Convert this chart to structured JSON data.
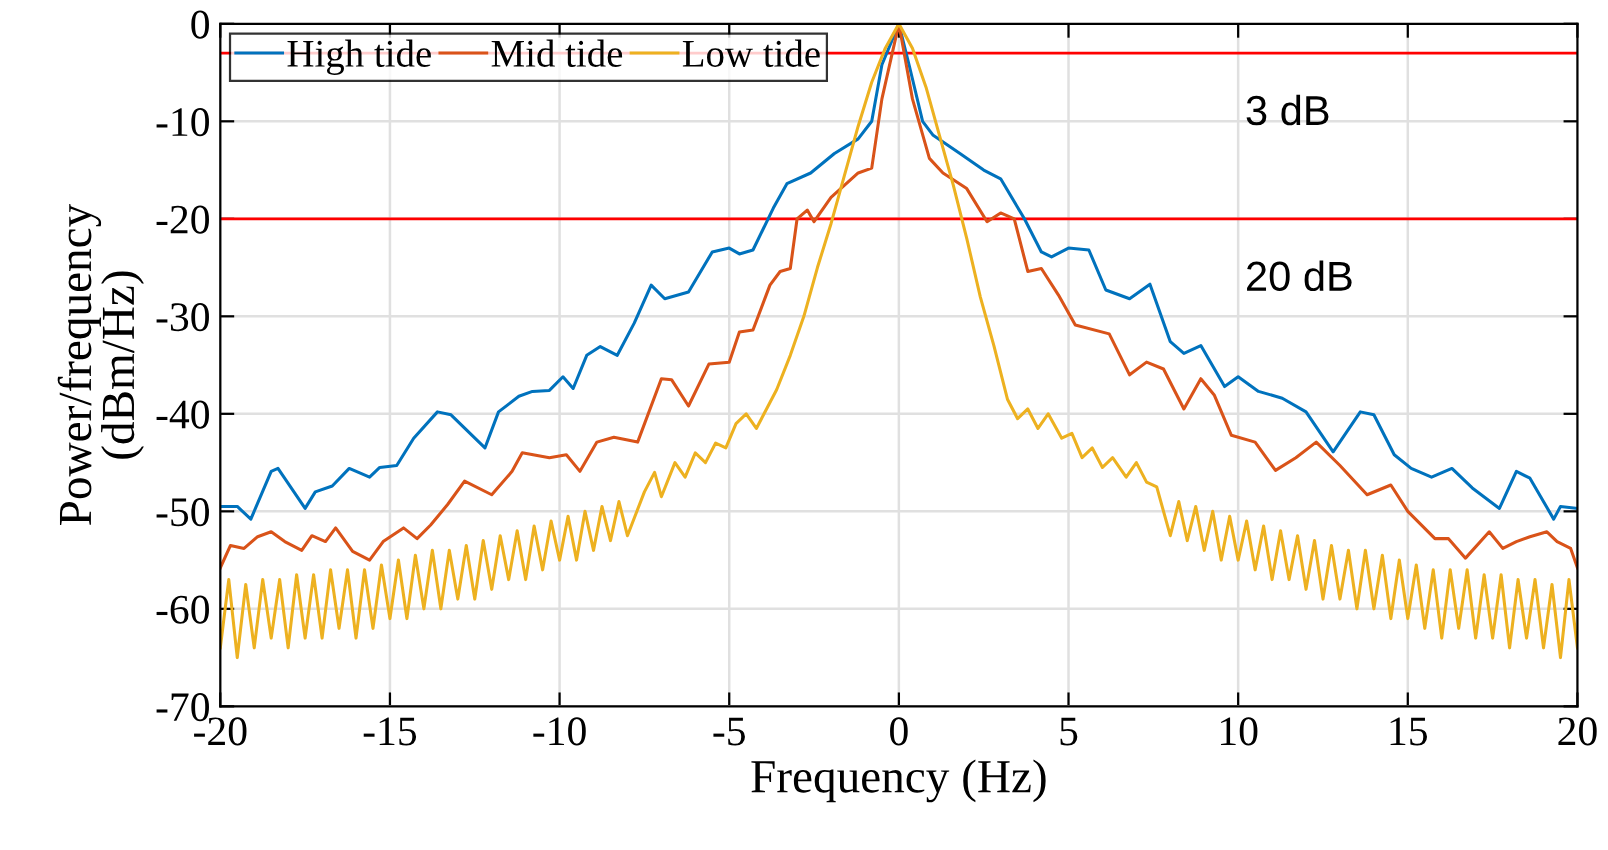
{
  "chart_data": {
    "type": "line",
    "xlabel": "Frequency (Hz)",
    "ylabel": "Power/frequency\n(dBm/Hz)",
    "xlim": [
      -20,
      20
    ],
    "ylim": [
      -70,
      0
    ],
    "xticks": [
      -20,
      -15,
      -10,
      -5,
      0,
      5,
      10,
      15,
      20
    ],
    "yticks": [
      -70,
      -60,
      -50,
      -40,
      -30,
      -20,
      -10,
      0
    ],
    "grid": true,
    "legend": "top left",
    "line_style": "solid",
    "marker": "none",
    "series": [
      {
        "name": "High tide",
        "color": "#0072bd",
        "x": [
          -20,
          -19.5,
          -19.1,
          -18.5,
          -18.3,
          -17.5,
          -17.2,
          -16.7,
          -16.2,
          -15.6,
          -15.3,
          -14.8,
          -14.3,
          -13.6,
          -13.2,
          -12.2,
          -11.8,
          -11.2,
          -10.8,
          -10.3,
          -9.9,
          -9.6,
          -9.2,
          -8.8,
          -8.3,
          -7.8,
          -7.3,
          -6.9,
          -6.2,
          -5.5,
          -5.0,
          -4.7,
          -4.3,
          -3.7,
          -3.3,
          -2.6,
          -1.9,
          -1.2,
          -0.8,
          -0.5,
          0,
          0.3,
          0.7,
          1.0,
          1.8,
          2.5,
          3.0,
          3.7,
          4.2,
          4.5,
          5.0,
          5.6,
          6.1,
          6.8,
          7.4,
          8.0,
          8.4,
          8.9,
          9.6,
          10.0,
          10.6,
          11.3,
          12.0,
          12.8,
          13.6,
          14.0,
          14.6,
          15.1,
          15.7,
          16.3,
          16.9,
          17.7,
          18.2,
          18.6,
          19.3,
          19.5,
          20
        ],
        "values": [
          -49.5,
          -49.5,
          -50.8,
          -45.9,
          -45.6,
          -49.7,
          -48,
          -47.4,
          -45.6,
          -46.5,
          -45.5,
          -45.3,
          -42.5,
          -39.8,
          -40.1,
          -43.5,
          -39.8,
          -38.2,
          -37.7,
          -37.6,
          -36.2,
          -37.4,
          -34,
          -33.1,
          -34,
          -30.7,
          -26.8,
          -28.2,
          -27.5,
          -23.4,
          -23,
          -23.6,
          -23.2,
          -18.9,
          -16.4,
          -15.3,
          -13.3,
          -11.8,
          -10,
          -4.2,
          0,
          -4.2,
          -10,
          -11.4,
          -13.3,
          -15,
          -15.9,
          -20,
          -23.4,
          -23.9,
          -23,
          -23.2,
          -27.3,
          -28.2,
          -26.7,
          -32.6,
          -33.8,
          -33,
          -37.2,
          -36.2,
          -37.7,
          -38.4,
          -39.8,
          -43.9,
          -39.8,
          -40.1,
          -44.2,
          -45.6,
          -46.5,
          -45.6,
          -47.6,
          -49.7,
          -45.9,
          -46.6,
          -50.8,
          -49.5,
          -49.7
        ]
      },
      {
        "name": "Mid tide",
        "color": "#d95319",
        "x": [
          -20,
          -19.7,
          -19.3,
          -18.9,
          -18.5,
          -18.1,
          -17.6,
          -17.3,
          -16.9,
          -16.6,
          -16.1,
          -15.6,
          -15.2,
          -14.6,
          -14.2,
          -13.8,
          -13.3,
          -12.8,
          -12.0,
          -11.4,
          -11.1,
          -10.3,
          -9.8,
          -9.4,
          -8.9,
          -8.4,
          -7.7,
          -7.0,
          -6.7,
          -6.2,
          -5.6,
          -5.0,
          -4.7,
          -4.3,
          -3.8,
          -3.5,
          -3.2,
          -3.0,
          -2.7,
          -2.5,
          -2.0,
          -1.2,
          -0.8,
          -0.5,
          0,
          0.4,
          0.9,
          1.3,
          2.0,
          2.6,
          3.0,
          3.4,
          3.8,
          4.2,
          4.7,
          5.2,
          6.2,
          6.8,
          7.3,
          7.8,
          8.4,
          8.9,
          9.3,
          9.8,
          10.5,
          11.1,
          11.7,
          12.3,
          13.0,
          13.8,
          14.5,
          15.0,
          15.8,
          16.2,
          16.7,
          17.4,
          17.8,
          18.2,
          18.6,
          19.1,
          19.4,
          19.8,
          20
        ],
        "values": [
          -55.8,
          -53.5,
          -53.8,
          -52.6,
          -52.1,
          -53.1,
          -54,
          -52.5,
          -53.1,
          -51.7,
          -54.1,
          -55,
          -53.1,
          -51.7,
          -52.8,
          -51.4,
          -49.3,
          -46.9,
          -48.3,
          -45.9,
          -44,
          -44.5,
          -44.2,
          -45.9,
          -42.9,
          -42.4,
          -42.9,
          -36.4,
          -36.5,
          -39.2,
          -34.9,
          -34.7,
          -31.6,
          -31.4,
          -26.8,
          -25.4,
          -25.1,
          -20,
          -19.1,
          -20.3,
          -17.8,
          -15.3,
          -14.8,
          -7.7,
          0,
          -7.7,
          -13.8,
          -15.3,
          -16.9,
          -20.3,
          -19.4,
          -20,
          -25.4,
          -25.1,
          -27.8,
          -30.9,
          -31.8,
          -36,
          -34.7,
          -35.4,
          -39.5,
          -36.4,
          -38.1,
          -42.2,
          -42.9,
          -45.8,
          -44.5,
          -42.9,
          -45.3,
          -48.3,
          -47.3,
          -50,
          -52.8,
          -52.8,
          -54.8,
          -52.1,
          -53.8,
          -53.1,
          -52.6,
          -52.1,
          -53.1,
          -53.8,
          -55.8
        ]
      },
      {
        "name": "Low tide",
        "color": "#edb120",
        "x": [
          -20,
          -19.75,
          -19.5,
          -19.25,
          -19,
          -18.75,
          -18.5,
          -18.25,
          -18,
          -17.75,
          -17.5,
          -17.25,
          -17,
          -16.75,
          -16.5,
          -16.25,
          -16,
          -15.75,
          -15.5,
          -15.25,
          -15,
          -14.75,
          -14.5,
          -14.25,
          -14,
          -13.75,
          -13.5,
          -13.25,
          -13,
          -12.75,
          -12.5,
          -12.25,
          -12,
          -11.75,
          -11.5,
          -11.25,
          -11,
          -10.75,
          -10.5,
          -10.25,
          -10,
          -9.75,
          -9.5,
          -9.25,
          -9,
          -8.75,
          -8.5,
          -8.25,
          -8,
          -7.5,
          -7.2,
          -7.0,
          -6.6,
          -6.3,
          -6.0,
          -5.7,
          -5.4,
          -5.1,
          -4.8,
          -4.5,
          -4.2,
          -3.9,
          -3.6,
          -3.2,
          -2.8,
          -2.4,
          -2.0,
          -1.6,
          -1.2,
          -0.8,
          -0.4,
          0,
          0.4,
          0.8,
          1.2,
          1.6,
          2.0,
          2.4,
          2.8,
          3.2,
          3.5,
          3.8,
          4.1,
          4.4,
          4.8,
          5.1,
          5.4,
          5.7,
          6.0,
          6.3,
          6.7,
          7.0,
          7.3,
          7.6,
          8,
          8.25,
          8.5,
          8.75,
          9,
          9.25,
          9.5,
          9.75,
          10,
          10.25,
          10.5,
          10.75,
          11,
          11.25,
          11.5,
          11.75,
          12,
          12.25,
          12.5,
          12.75,
          13,
          13.25,
          13.5,
          13.75,
          14,
          14.25,
          14.5,
          14.75,
          15,
          15.25,
          15.5,
          15.75,
          16,
          16.25,
          16.5,
          16.75,
          17,
          17.25,
          17.5,
          17.75,
          18,
          18.25,
          18.5,
          18.75,
          19,
          19.25,
          19.5,
          19.75,
          20
        ],
        "values": [
          -64,
          -57,
          -65,
          -57.5,
          -64,
          -57,
          -63,
          -57,
          -64,
          -56.5,
          -63,
          -56.5,
          -63,
          -56,
          -62,
          -56,
          -63,
          -56,
          -62,
          -55.5,
          -61,
          -55,
          -61,
          -54.5,
          -60,
          -54,
          -60,
          -54,
          -59,
          -53.5,
          -59,
          -53,
          -58,
          -52.5,
          -57,
          -52,
          -57,
          -51.5,
          -56,
          -51,
          -55,
          -50.5,
          -55,
          -50,
          -54,
          -49.5,
          -53,
          -49,
          -52.5,
          -48,
          -46,
          -48.5,
          -45,
          -46.5,
          -44,
          -45,
          -43,
          -43.5,
          -41,
          -40,
          -41.5,
          -39.5,
          -37.5,
          -34,
          -30,
          -25,
          -20.5,
          -15.5,
          -10.5,
          -6,
          -2.5,
          0,
          -2.5,
          -6.5,
          -11.5,
          -16.5,
          -22,
          -28,
          -33,
          -38.5,
          -40.5,
          -39.5,
          -41.5,
          -40,
          -42.5,
          -42,
          -44.5,
          -43.5,
          -45.5,
          -44.5,
          -46.5,
          -45,
          -47,
          -47.5,
          -52.5,
          -49,
          -53,
          -49.5,
          -54,
          -50,
          -55,
          -50.5,
          -55,
          -51,
          -56,
          -51.5,
          -57,
          -52,
          -57,
          -52.5,
          -58,
          -53,
          -59,
          -53.5,
          -59,
          -54,
          -60,
          -54,
          -60,
          -54.5,
          -61,
          -55,
          -61,
          -55.5,
          -62,
          -56,
          -63,
          -56,
          -62,
          -56,
          -63,
          -56.5,
          -63,
          -56.5,
          -64,
          -57,
          -63,
          -57,
          -64,
          -57.5,
          -65,
          -57,
          -64
        ]
      }
    ],
    "ref_lines": [
      {
        "axis": "y",
        "value": -3,
        "color": "#ff0000",
        "label": "3 dB"
      },
      {
        "axis": "y",
        "value": -20,
        "color": "#ff0000",
        "label": "20 dB"
      }
    ]
  }
}
